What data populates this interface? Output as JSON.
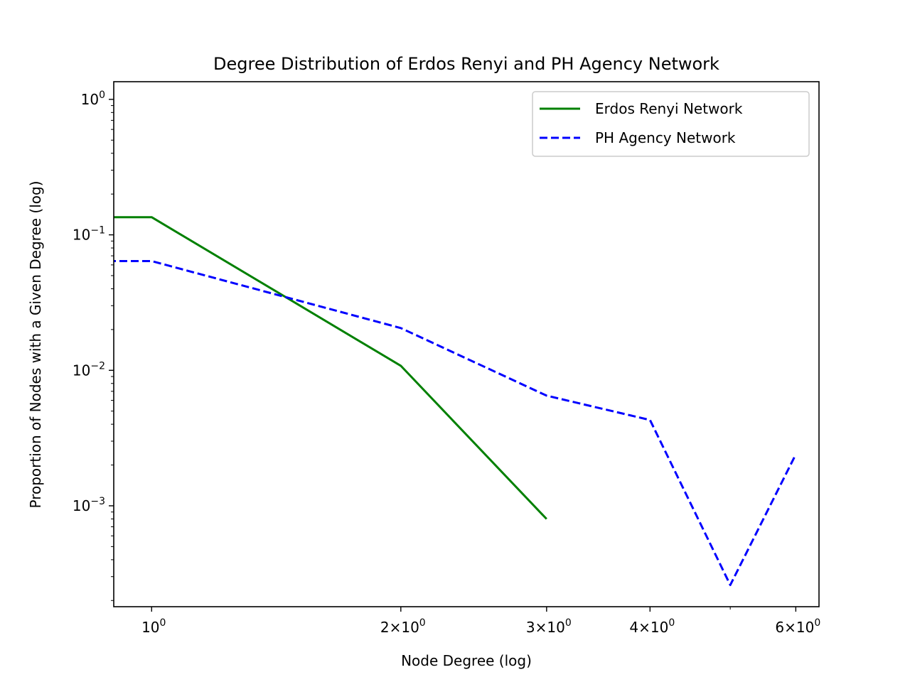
{
  "chart_data": {
    "type": "line",
    "title": "Degree Distribution of Erdos Renyi and PH Agency Network",
    "xlabel": "Node Degree (log)",
    "ylabel": "Proportion of Nodes with a Given Degree (log)",
    "xscale": "log",
    "yscale": "log",
    "xlim": [
      0.9,
      6.4
    ],
    "ylim": [
      0.00018,
      1.35
    ],
    "x_major_ticks": [
      {
        "value": 1,
        "base": "10",
        "exp": "0"
      },
      {
        "value": 2,
        "base": "2×10",
        "exp": "0"
      },
      {
        "value": 3,
        "base": "3×10",
        "exp": "0"
      },
      {
        "value": 4,
        "base": "4×10",
        "exp": "0"
      },
      {
        "value": 6,
        "base": "6×10",
        "exp": "0"
      }
    ],
    "x_minor_ticks": [
      5
    ],
    "y_major_ticks": [
      {
        "value": 1,
        "base": "10",
        "exp": "0"
      },
      {
        "value": 0.1,
        "base": "10",
        "exp": "−1"
      },
      {
        "value": 0.01,
        "base": "10",
        "exp": "−2"
      },
      {
        "value": 0.001,
        "base": "10",
        "exp": "−3"
      }
    ],
    "y_minor_ticks": [
      0.9,
      0.8,
      0.7,
      0.6,
      0.5,
      0.4,
      0.3,
      0.2,
      0.09,
      0.08,
      0.07,
      0.06,
      0.05,
      0.04,
      0.03,
      0.02,
      0.009,
      0.008,
      0.007,
      0.006,
      0.005,
      0.004,
      0.003,
      0.002,
      0.0009,
      0.0008,
      0.0007,
      0.0006,
      0.0005,
      0.0004,
      0.0003,
      0.0002
    ],
    "legend_position": "top-right",
    "grid": false,
    "series": [
      {
        "name": "Erdos Renyi Network",
        "color": "#008000",
        "style": "solid",
        "points": [
          [
            0,
            0.135
          ],
          [
            1,
            0.135
          ],
          [
            2,
            0.0108
          ],
          [
            3,
            0.0008
          ]
        ]
      },
      {
        "name": "PH Agency Network",
        "color": "#0000ff",
        "style": "dashed",
        "points": [
          [
            0,
            0.064
          ],
          [
            1,
            0.064
          ],
          [
            2,
            0.0205
          ],
          [
            3,
            0.0065
          ],
          [
            4,
            0.0043
          ],
          [
            5,
            0.00026
          ],
          [
            6,
            0.0024
          ]
        ]
      }
    ]
  }
}
